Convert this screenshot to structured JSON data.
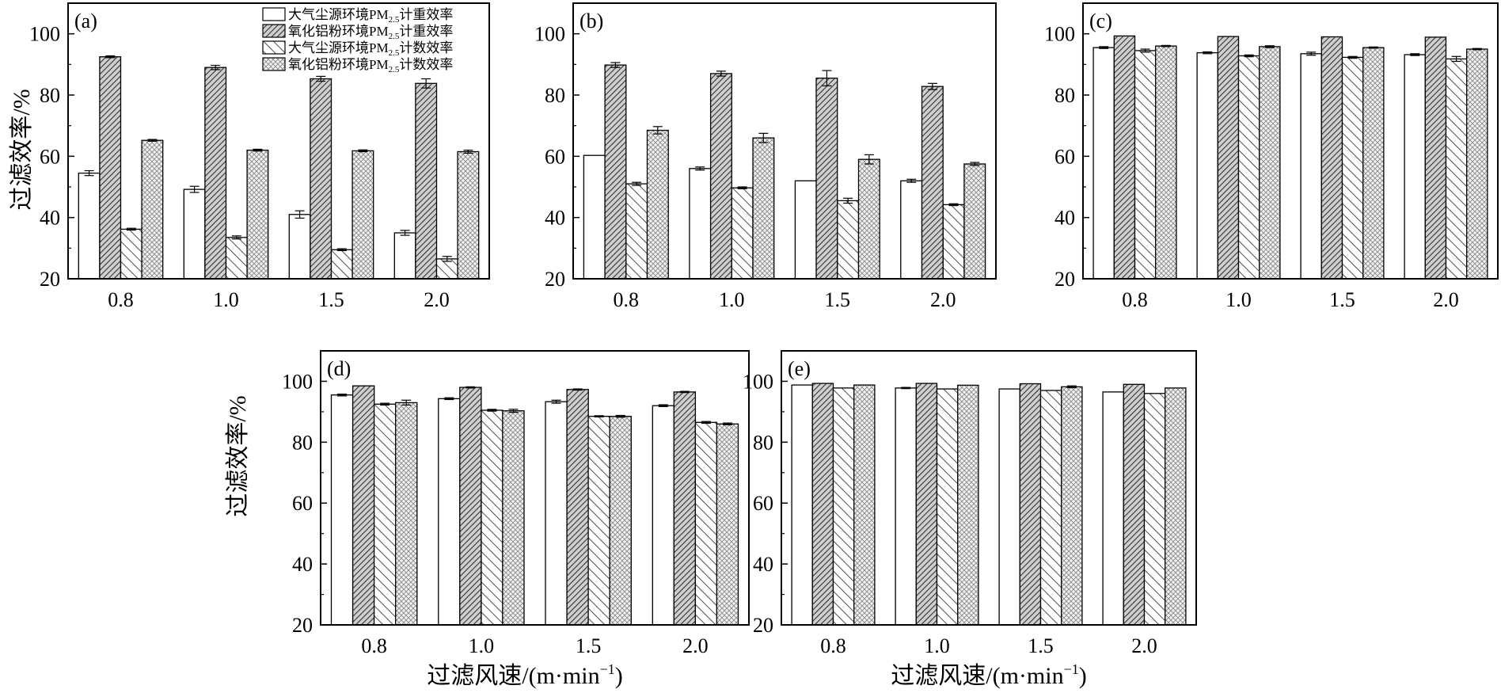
{
  "figure": {
    "ylabel_top": "过滤效率/%",
    "ylabel_bottom": "过滤效率/%",
    "xlabel": "过滤风速/(m·min",
    "xlabel_sup": "−1",
    "xlabel_close": ")"
  },
  "legend": {
    "items": [
      {
        "text": "大气尘源环境PM",
        "sub": "2.5",
        "suffix": "计重效率",
        "pattern": "white"
      },
      {
        "text": "氧化铝粉环境PM",
        "sub": "2.5",
        "suffix": "计重效率",
        "pattern": "dense-diag"
      },
      {
        "text": "大气尘源环境PM",
        "sub": "2.5",
        "suffix": "计数效率",
        "pattern": "diag"
      },
      {
        "text": "氧化铝粉环境PM",
        "sub": "2.5",
        "suffix": "计数效率",
        "pattern": "cross"
      }
    ]
  },
  "chart_data": [
    {
      "type": "bar",
      "panel": "(a)",
      "categories": [
        "0.8",
        "1.0",
        "1.5",
        "2.0"
      ],
      "ylim": [
        20,
        110
      ],
      "yticks": [
        "20",
        "40",
        "60",
        "80",
        "100"
      ],
      "series": [
        {
          "name": "大气尘源环境PM2.5计重效率",
          "values": [
            54.5,
            49.2,
            41.0,
            35.0
          ],
          "errors": [
            0.8,
            1.0,
            1.2,
            0.8
          ]
        },
        {
          "name": "氧化铝粉环境PM2.5计重效率",
          "values": [
            92.5,
            89.0,
            85.3,
            83.8
          ],
          "errors": [
            0.3,
            0.7,
            0.8,
            1.5
          ]
        },
        {
          "name": "大气尘源环境PM2.5计数效率",
          "values": [
            36.2,
            33.5,
            29.5,
            26.5
          ],
          "errors": [
            0.3,
            0.5,
            0.3,
            0.8
          ]
        },
        {
          "name": "氧化铝粉环境PM2.5计数效率",
          "values": [
            65.2,
            62.0,
            61.8,
            61.5
          ],
          "errors": [
            0.3,
            0.3,
            0.3,
            0.5
          ]
        }
      ]
    },
    {
      "type": "bar",
      "panel": "(b)",
      "categories": [
        "0.8",
        "1.0",
        "1.5",
        "2.0"
      ],
      "ylim": [
        20,
        110
      ],
      "yticks": [
        "20",
        "40",
        "60",
        "80",
        "100"
      ],
      "series": [
        {
          "name": "大气尘源环境PM2.5计重效率",
          "values": [
            60.3,
            56.0,
            52.0,
            52.0
          ],
          "errors": [
            0,
            0.5,
            0,
            0.5
          ]
        },
        {
          "name": "氧化铝粉环境PM2.5计重效率",
          "values": [
            89.8,
            87.0,
            85.5,
            82.8
          ],
          "errors": [
            0.8,
            0.8,
            2.5,
            1.0
          ]
        },
        {
          "name": "大气尘源环境PM2.5计数效率",
          "values": [
            51.0,
            49.7,
            45.5,
            44.2
          ],
          "errors": [
            0.5,
            0.3,
            0.8,
            0.3
          ]
        },
        {
          "name": "氧化铝粉环境PM2.5计数效率",
          "values": [
            68.5,
            66.0,
            59.0,
            57.5
          ],
          "errors": [
            1.2,
            1.5,
            1.5,
            0.5
          ]
        }
      ]
    },
    {
      "type": "bar",
      "panel": "(c)",
      "categories": [
        "0.8",
        "1.0",
        "1.5",
        "2.0"
      ],
      "ylim": [
        20,
        110
      ],
      "yticks": [
        "20",
        "40",
        "60",
        "80",
        "100"
      ],
      "series": [
        {
          "name": "大气尘源环境PM2.5计重效率",
          "values": [
            95.5,
            93.8,
            93.5,
            93.2
          ],
          "errors": [
            0.3,
            0.3,
            0.5,
            0.3
          ]
        },
        {
          "name": "氧化铝粉环境PM2.5计重效率",
          "values": [
            99.3,
            99.1,
            99.0,
            98.9
          ],
          "errors": [
            0,
            0,
            0,
            0
          ]
        },
        {
          "name": "大气尘源环境PM2.5计数效率",
          "values": [
            94.5,
            92.8,
            92.3,
            91.8
          ],
          "errors": [
            0.5,
            0.3,
            0.3,
            0.8
          ]
        },
        {
          "name": "氧化铝粉环境PM2.5计数效率",
          "values": [
            96.0,
            95.8,
            95.5,
            95.0
          ],
          "errors": [
            0.2,
            0.3,
            0.2,
            0.2
          ]
        }
      ]
    },
    {
      "type": "bar",
      "panel": "(d)",
      "categories": [
        "0.8",
        "1.0",
        "1.5",
        "2.0"
      ],
      "ylim": [
        20,
        110
      ],
      "yticks": [
        "20",
        "40",
        "60",
        "80",
        "100"
      ],
      "series": [
        {
          "name": "大气尘源环境PM2.5计重效率",
          "values": [
            95.5,
            94.3,
            93.3,
            92.0
          ],
          "errors": [
            0.3,
            0.3,
            0.5,
            0.3
          ]
        },
        {
          "name": "氧化铝粉环境PM2.5计重效率",
          "values": [
            98.5,
            98.0,
            97.3,
            96.5
          ],
          "errors": [
            0,
            0.2,
            0.2,
            0.2
          ]
        },
        {
          "name": "大气尘源环境PM2.5计数效率",
          "values": [
            92.5,
            90.5,
            88.5,
            86.5
          ],
          "errors": [
            0.3,
            0.3,
            0.2,
            0.3
          ]
        },
        {
          "name": "氧化铝粉环境PM2.5计数效率",
          "values": [
            93.0,
            90.3,
            88.5,
            86.0
          ],
          "errors": [
            0.8,
            0.5,
            0.3,
            0.3
          ]
        }
      ]
    },
    {
      "type": "bar",
      "panel": "(e)",
      "categories": [
        "0.8",
        "1.0",
        "1.5",
        "2.0"
      ],
      "ylim": [
        20,
        110
      ],
      "yticks": [
        "20",
        "40",
        "60",
        "80",
        "100"
      ],
      "series": [
        {
          "name": "大气尘源环境PM2.5计重效率",
          "values": [
            98.8,
            97.8,
            97.5,
            96.5
          ],
          "errors": [
            0,
            0.2,
            0,
            0
          ]
        },
        {
          "name": "氧化铝粉环境PM2.5计重效率",
          "values": [
            99.3,
            99.3,
            99.2,
            99.0
          ],
          "errors": [
            0,
            0,
            0,
            0
          ]
        },
        {
          "name": "大气尘源环境PM2.5计数效率",
          "values": [
            97.8,
            97.5,
            97.0,
            96.0
          ],
          "errors": [
            0,
            0,
            0,
            0
          ]
        },
        {
          "name": "氧化铝粉环境PM2.5计数效率",
          "values": [
            98.8,
            98.7,
            98.2,
            97.8
          ],
          "errors": [
            0,
            0,
            0.3,
            0
          ]
        }
      ]
    }
  ]
}
